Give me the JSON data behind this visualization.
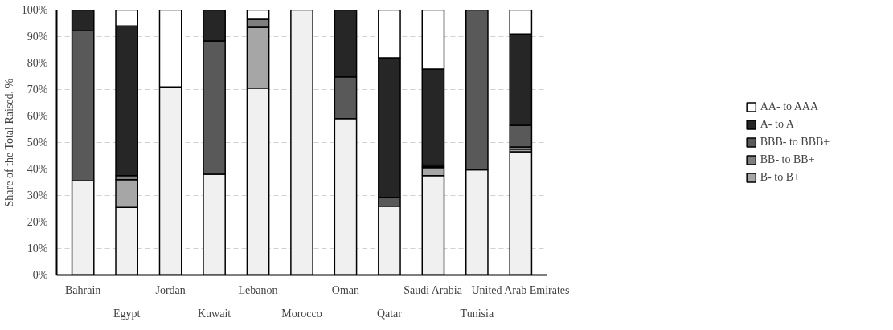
{
  "chart_data": {
    "type": "bar",
    "stacked": true,
    "ylabel": "Share of the Total Raised, %",
    "categories": [
      "Bahrain",
      "Egypt",
      "Jordan",
      "Kuwait",
      "Lebanon",
      "Morocco",
      "Oman",
      "Qatar",
      "Saudi Arabia",
      "Tunisia",
      "United Arab Emirates"
    ],
    "series": [
      {
        "color": "#f0f0f0",
        "values": [
          35.5,
          25.5,
          71,
          38,
          70.5,
          100,
          59,
          26,
          37.5,
          39.7,
          46.5
        ]
      },
      {
        "name": "B- to B+",
        "color": "#a6a6a6",
        "values": [
          0,
          10.5,
          0,
          0,
          23,
          0,
          0,
          0,
          3,
          0,
          1
        ]
      },
      {
        "name": "BB- to BB+",
        "color": "#7f7f7f",
        "values": [
          0,
          1.5,
          0,
          0,
          3,
          0,
          0,
          0,
          0.5,
          0,
          0.8
        ]
      },
      {
        "name": "BBB- to BBB+",
        "color": "#595959",
        "values": [
          56.7,
          0,
          0,
          50.3,
          0,
          0,
          15.8,
          3.3,
          0.5,
          60.3,
          8.2
        ]
      },
      {
        "name": "A- to A+",
        "color": "#262626",
        "values": [
          7.8,
          56.5,
          0,
          11.7,
          0,
          0,
          25.2,
          52.7,
          36.2,
          0,
          34.5
        ]
      },
      {
        "name": "AA- to AAA",
        "color": "#ffffff",
        "values": [
          0,
          6,
          29,
          0,
          3.5,
          0,
          0,
          18,
          22.3,
          0,
          9
        ]
      }
    ],
    "ylim": [
      0,
      100
    ],
    "yticks": [
      {
        "value": 0,
        "label": "0%"
      },
      {
        "value": 10,
        "label": "10%"
      },
      {
        "value": 20,
        "label": "20%"
      },
      {
        "value": 30,
        "label": "30%"
      },
      {
        "value": 40,
        "label": "40%"
      },
      {
        "value": 50,
        "label": "50%"
      },
      {
        "value": 60,
        "label": "60%"
      },
      {
        "value": 70,
        "label": "70%"
      },
      {
        "value": 80,
        "label": "80%"
      },
      {
        "value": 90,
        "label": "90%"
      },
      {
        "value": 100,
        "label": "100%"
      }
    ],
    "grid": "y",
    "legend": "right"
  }
}
